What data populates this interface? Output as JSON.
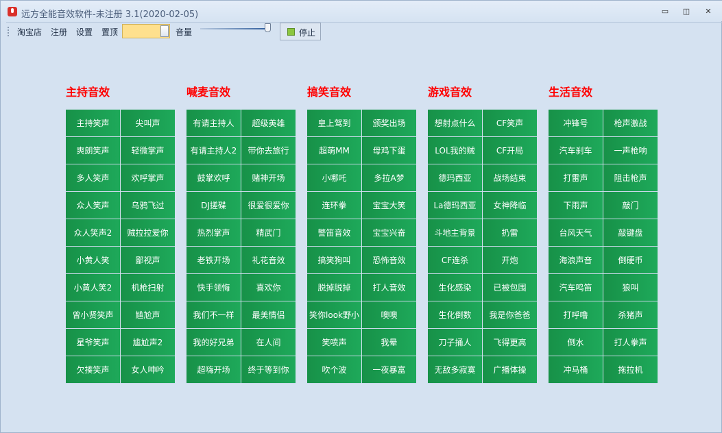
{
  "window": {
    "title": "远方全能音效软件-未注册 3.1(2020-02-05)",
    "minimize": "▭",
    "restore": "◫",
    "close": "✕"
  },
  "toolbar": {
    "shop": "淘宝店",
    "register": "注册",
    "settings": "设置",
    "pin": "置顶",
    "pin_on": false,
    "volume_label": "音量",
    "volume": 1.0,
    "stop": "停止"
  },
  "colors": {
    "button_green": "#1a9d52",
    "heading_red": "#ff0000",
    "background": "#d5e2f1"
  },
  "groups": [
    {
      "title": "主持音效",
      "items": [
        "主持笑声",
        "尖叫声",
        "爽朗笑声",
        "轻微掌声",
        "多人笑声",
        "欢呼掌声",
        "众人笑声",
        "乌鸦飞过",
        "众人笑声2",
        "贼拉拉爱你",
        "小黄人笑",
        "鄙视声",
        "小黄人笑2",
        "机枪扫射",
        "曾小贤笑声",
        "尴尬声",
        "星爷笑声",
        "尴尬声2",
        "欠揍笑声",
        "女人呻吟"
      ]
    },
    {
      "title": "喊麦音效",
      "items": [
        "有请主持人",
        "超级英雄",
        "有请主持人2",
        "带你去旅行",
        "鼓掌欢呼",
        "赌神开场",
        "DJ搓碟",
        "很爱很爱你",
        "热烈掌声",
        "精武门",
        "老铁开场",
        "礼花音效",
        "快手领悔",
        "喜欢你",
        "我们不一样",
        "最美情侣",
        "我的好兄弟",
        "在人间",
        "超嗨开场",
        "终于等到你"
      ]
    },
    {
      "title": "搞笑音效",
      "items": [
        "皇上驾到",
        "颁奖出场",
        "超萌MM",
        "母鸡下蛋",
        "小哪吒",
        "多拉A梦",
        "连环拳",
        "宝宝大笑",
        "警笛音效",
        "宝宝兴奋",
        "搞笑狗叫",
        "恐怖音效",
        "脱掉脱掉",
        "打人音效",
        "笑你look野小",
        "噢噢",
        "笑喷声",
        "我晕",
        "吹个波",
        "一夜暴富"
      ]
    },
    {
      "title": "游戏音效",
      "items": [
        "想射点什么",
        "CF笑声",
        "LOL我的贼",
        "CF开局",
        "德玛西亚",
        "战场结束",
        "La德玛西亚",
        "女神降临",
        "斗地主背景",
        "扔雷",
        "CF连杀",
        "开炮",
        "生化感染",
        "已被包围",
        "生化倒数",
        "我是你爸爸",
        "刀子捅人",
        "飞得更高",
        "无敌多寂寞",
        "广播体操"
      ]
    },
    {
      "title": "生活音效",
      "items": [
        "冲锋号",
        "枪声激战",
        "汽车刹车",
        "一声枪响",
        "打雷声",
        "阻击枪声",
        "下雨声",
        "敲门",
        "台风天气",
        "敲键盘",
        "海浪声音",
        "倒硬币",
        "汽车鸣笛",
        "狼叫",
        "打呼噜",
        "杀猪声",
        "倒水",
        "打人拳声",
        "冲马桶",
        "拖拉机"
      ]
    }
  ]
}
